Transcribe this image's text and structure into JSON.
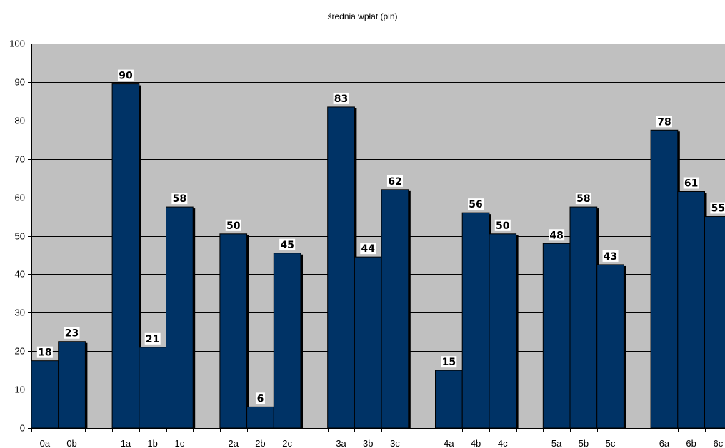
{
  "chart_data": {
    "type": "bar",
    "title": "średnia wpłat (pln)",
    "xlabel": "",
    "ylabel": "",
    "ylim": [
      0,
      100
    ],
    "yticks": [
      0,
      10,
      20,
      30,
      40,
      50,
      60,
      70,
      80,
      90,
      100
    ],
    "grid": true,
    "legend": "none",
    "groups": [
      "0",
      "1",
      "2",
      "3",
      "4",
      "5",
      "6"
    ],
    "categories": [
      "0a",
      "0b",
      "1a",
      "1b",
      "1c",
      "2a",
      "2b",
      "2c",
      "3a",
      "3b",
      "3c",
      "4a",
      "4b",
      "4c",
      "5a",
      "5b",
      "5c",
      "6a",
      "6b",
      "6c"
    ],
    "values": [
      17.5,
      22.5,
      89.5,
      21,
      57.5,
      50.5,
      5.5,
      45.5,
      83.5,
      44.5,
      62,
      15,
      56,
      50.5,
      48,
      57.5,
      42.5,
      77.5,
      61.5,
      55
    ],
    "data_labels": [
      "18",
      "23",
      "90",
      "21",
      "58",
      "50",
      "6",
      "45",
      "83",
      "44",
      "62",
      "15",
      "56",
      "50",
      "48",
      "58",
      "43",
      "78",
      "61",
      "55"
    ],
    "colors": {
      "bar": "#003366",
      "plot_background": "#c0c0c0",
      "gridline": "#000000"
    }
  }
}
